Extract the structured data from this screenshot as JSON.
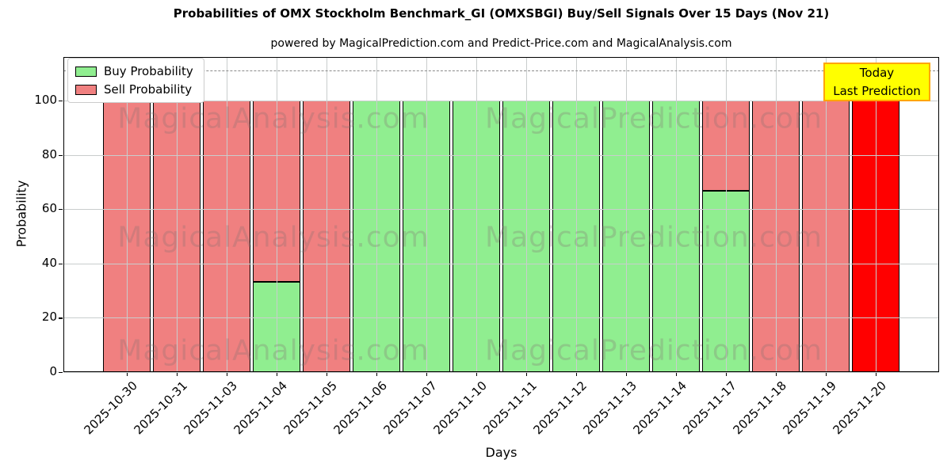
{
  "title": "Probabilities of OMX Stockholm Benchmark_GI (OMXSBGI) Buy/Sell Signals Over 15 Days (Nov 21)",
  "subtitle": "powered by MagicalPrediction.com and Predict-Price.com and MagicalAnalysis.com",
  "watermarks": {
    "left": "MagicalAnalysis.com",
    "right": "MagicalPrediction.com"
  },
  "annotation": {
    "line1": "Today",
    "line2": "Last Prediction",
    "bg_color": "#ffff00",
    "border_color": "#ffa500"
  },
  "chart_data": {
    "type": "bar",
    "stacked": true,
    "title": "Probabilities of OMX Stockholm Benchmark_GI (OMXSBGI) Buy/Sell Signals Over 15 Days (Nov 21)",
    "xlabel": "Days",
    "ylabel": "Probability",
    "grid": true,
    "legend_position": "upper left",
    "ylim": [
      0,
      116
    ],
    "xlim": [
      -1.27,
      16.27
    ],
    "yticks": [
      0,
      20,
      40,
      60,
      80,
      100
    ],
    "dashed_line_y": 111,
    "bar_width": 0.94,
    "categories": [
      "2025-10-30",
      "2025-10-31",
      "2025-11-03",
      "2025-11-04",
      "2025-11-05",
      "2025-11-06",
      "2025-11-07",
      "2025-11-10",
      "2025-11-11",
      "2025-11-12",
      "2025-11-13",
      "2025-11-14",
      "2025-11-17",
      "2025-11-18",
      "2025-11-19",
      "2025-11-20"
    ],
    "series": [
      {
        "name": "Buy Probability",
        "color": "#90EE90",
        "values": [
          0,
          0,
          0,
          33.33,
          0,
          100,
          100,
          100,
          100,
          100,
          100,
          100,
          66.67,
          0,
          0,
          0
        ]
      },
      {
        "name": "Sell Probability",
        "color": "#F08080",
        "values": [
          100,
          100,
          100,
          66.67,
          100,
          0,
          0,
          0,
          0,
          0,
          0,
          0,
          33.33,
          100,
          100,
          100
        ]
      }
    ],
    "today_highlight": {
      "index": 15,
      "color": "#FF0000"
    }
  }
}
